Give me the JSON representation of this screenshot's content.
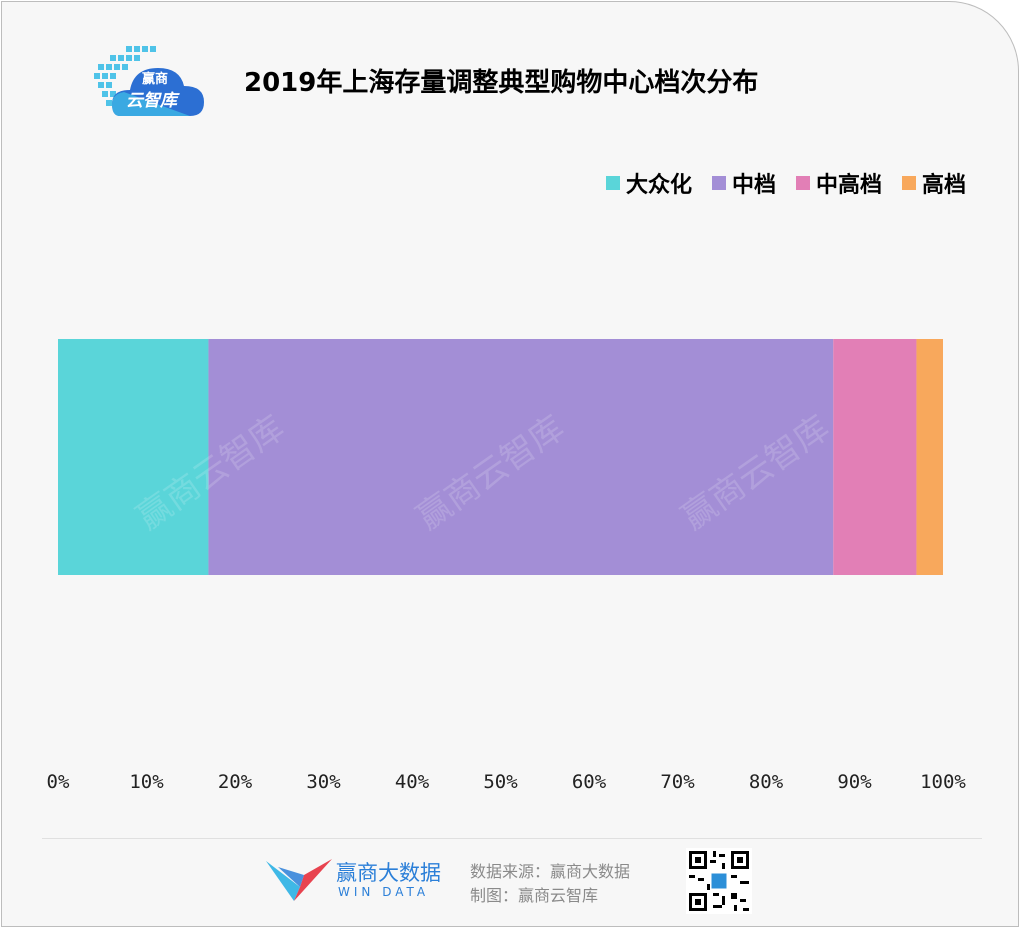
{
  "header": {
    "logo_text_line1": "赢商",
    "logo_text_line2": "云智库",
    "title": "2019年上海存量调整典型购物中心档次分布"
  },
  "watermark": "赢商云智库",
  "chart_data": {
    "type": "bar",
    "orientation": "horizontal",
    "stacked": true,
    "percent": true,
    "categories": [
      ""
    ],
    "series": [
      {
        "name": "大众化",
        "values": [
          17
        ],
        "color": "#5ad5d9"
      },
      {
        "name": "中档",
        "values": [
          70.6
        ],
        "color": "#a38ed6"
      },
      {
        "name": "中高档",
        "values": [
          9.4
        ],
        "color": "#e27fb6"
      },
      {
        "name": "高档",
        "values": [
          3
        ],
        "color": "#f8a85c"
      }
    ],
    "xlim": [
      0,
      100
    ],
    "xticks": [
      "0%",
      "10%",
      "20%",
      "30%",
      "40%",
      "50%",
      "60%",
      "70%",
      "80%",
      "90%",
      "100%"
    ],
    "grid": false,
    "legend_position": "top-right",
    "title": "2019年上海存量调整典型购物中心档次分布",
    "xlabel": "",
    "ylabel": ""
  },
  "footer": {
    "brand_cn": "赢商大数据",
    "brand_en": "WIN DATA",
    "source_line1": "数据来源：赢商大数据",
    "source_line2": "制图：赢商云智库"
  }
}
